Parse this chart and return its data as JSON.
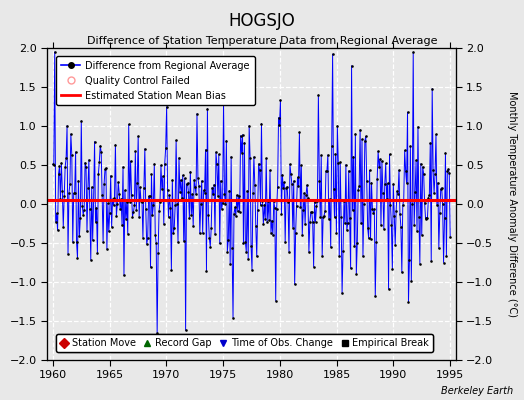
{
  "title": "HOGSJO",
  "subtitle": "Difference of Station Temperature Data from Regional Average",
  "ylabel_right": "Monthly Temperature Anomaly Difference (°C)",
  "ylim": [
    -2,
    2
  ],
  "xlim": [
    1959.5,
    1995.5
  ],
  "xticks": [
    1960,
    1965,
    1970,
    1975,
    1980,
    1985,
    1990,
    1995
  ],
  "yticks": [
    -2,
    -1.5,
    -1,
    -0.5,
    0,
    0.5,
    1,
    1.5,
    2
  ],
  "bias_line": 0.05,
  "line_color": "#0000FF",
  "bias_color": "#FF0000",
  "dot_color": "#000000",
  "fig_background": "#E8E8E8",
  "plot_background": "#E8E8E8",
  "grid_color": "#FFFFFF",
  "watermark": "Berkeley Earth"
}
